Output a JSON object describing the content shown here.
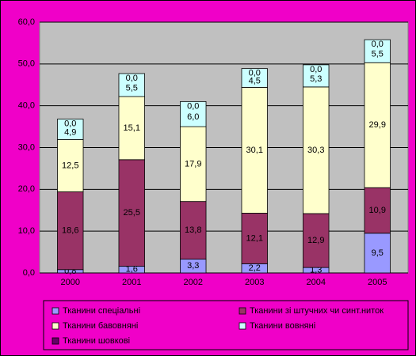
{
  "chart_data": {
    "type": "stacked-bar",
    "categories": [
      "2000",
      "2001",
      "2002",
      "2003",
      "2004",
      "2005"
    ],
    "series": [
      {
        "name": "Тканини спеціальні",
        "color": "#9999ff",
        "values": [
          0.8,
          1.6,
          3.3,
          2.2,
          1.3,
          9.5
        ],
        "value_labels": [
          "0,8",
          "1,6",
          "3,3",
          "2,2",
          "1,3",
          "9,5"
        ]
      },
      {
        "name": "Тканини зі штучних чи синт.ниток",
        "color": "#993366",
        "values": [
          18.6,
          25.5,
          13.8,
          12.1,
          12.9,
          10.9
        ],
        "value_labels": [
          "18,6",
          "25,5",
          "13,8",
          "12,1",
          "12,9",
          "10,9"
        ]
      },
      {
        "name": "Тканини бавовняні",
        "color": "#ffffcc",
        "values": [
          12.5,
          15.1,
          17.9,
          30.1,
          30.3,
          29.9
        ],
        "value_labels": [
          "12,5",
          "15,1",
          "17,9",
          "30,1",
          "30,3",
          "29,9"
        ]
      },
      {
        "name": "Тканини вовняні",
        "color": "#ccffff",
        "values": [
          4.9,
          5.5,
          6.0,
          4.5,
          5.3,
          5.5
        ],
        "value_labels": [
          "4,9",
          "5,5",
          "6,0",
          "4,5",
          "5,3",
          "5,5"
        ]
      },
      {
        "name": "Тканини шовкові",
        "color": "#660066",
        "values": [
          0.0,
          0.0,
          0.0,
          0.0,
          0.0,
          0.0
        ],
        "value_labels": [
          "0,0",
          "0,0",
          "0,0",
          "0,0",
          "0,0",
          "0,0"
        ]
      }
    ],
    "ylim": [
      0,
      60
    ],
    "yticks": [
      {
        "value": 0,
        "label": "0,0"
      },
      {
        "value": 10,
        "label": "10,0"
      },
      {
        "value": 20,
        "label": "20,0"
      },
      {
        "value": 30,
        "label": "30,0"
      },
      {
        "value": 40,
        "label": "40,0"
      },
      {
        "value": 50,
        "label": "50,0"
      },
      {
        "value": 60,
        "label": "60,0"
      }
    ],
    "grid": true,
    "legend_position": "bottom"
  }
}
